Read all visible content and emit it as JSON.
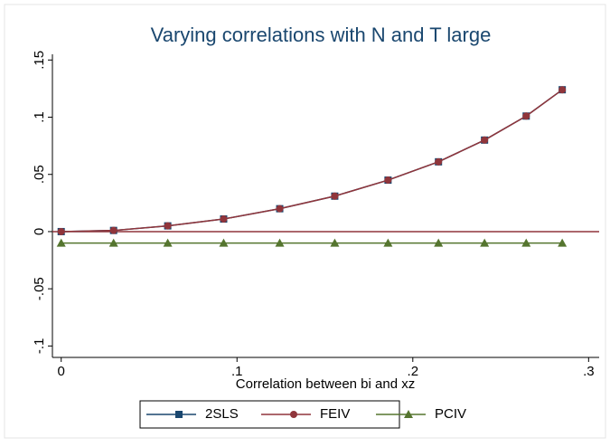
{
  "chart_data": {
    "type": "line",
    "title": "Varying correlations with N and T large",
    "x_label": "Correlation between bi and xz",
    "x": [
      0,
      0.0298,
      0.0606,
      0.0924,
      0.1243,
      0.1556,
      0.1859,
      0.2146,
      0.2408,
      0.2645,
      0.285
    ],
    "series": [
      {
        "name": "2SLS",
        "color": "#1a476f",
        "marker": "square",
        "values": [
          0,
          0.001,
          0.005,
          0.011,
          0.02,
          0.031,
          0.045,
          0.061,
          0.08,
          0.101,
          0.124
        ]
      },
      {
        "name": "FEIV",
        "color": "#90353b",
        "marker": "circle",
        "values": [
          0,
          0.001,
          0.005,
          0.011,
          0.02,
          0.031,
          0.045,
          0.061,
          0.08,
          0.101,
          0.124
        ]
      },
      {
        "name": "PCIV",
        "color": "#55752f",
        "marker": "triangle",
        "values": [
          -0.01,
          -0.01,
          -0.01,
          -0.01,
          -0.01,
          -0.01,
          -0.01,
          -0.01,
          -0.01,
          -0.01,
          -0.01
        ]
      }
    ],
    "xlim": [
      -0.005,
      0.306
    ],
    "ylim": [
      -0.11,
      0.155
    ],
    "xticks": [
      0,
      {
        "value": 0.1,
        "label": ".1"
      },
      {
        "value": 0.2,
        "label": ".2"
      },
      {
        "value": 0.3,
        "label": ".3"
      }
    ],
    "yticks": [
      {
        "value": -0.1,
        "label": "-.1"
      },
      {
        "value": -0.05,
        "label": "-.05"
      },
      0,
      {
        "value": 0.05,
        "label": ".05"
      },
      {
        "value": 0.1,
        "label": ".1"
      },
      {
        "value": 0.15,
        "label": ".15"
      }
    ],
    "yline": {
      "value": 0,
      "color": "#90353b"
    },
    "legend": "bottom"
  }
}
